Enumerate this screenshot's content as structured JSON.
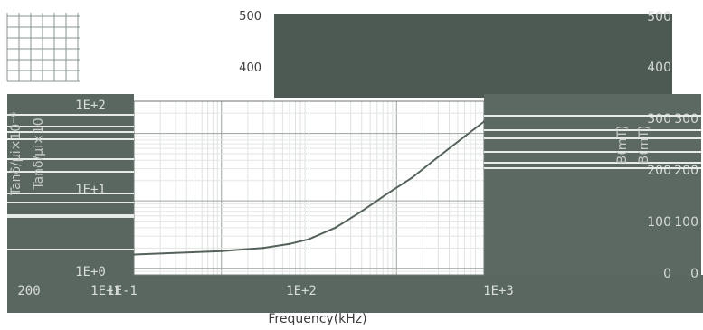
{
  "chart_data": {
    "type": "line",
    "title": "",
    "xlabel": "Frequency(kHz)",
    "ylabel_left": "Tanδ/μi×10",
    "ylabel_left_alt": "Tanδ/μi×10⁻⁶",
    "ylabel_right": "B(mT)",
    "ylabel_right_alt": "B(mT)",
    "x_scale": "log",
    "xlim": [
      0.1,
      1000
    ],
    "x_ticks": [
      "1E-1",
      "1E+1",
      "1E+2",
      "1E+3"
    ],
    "y_left_scale": "log",
    "y_left_ticks": [
      "1E+0",
      "1E+1",
      "1E+2"
    ],
    "y_left_extra_labels": [
      "200"
    ],
    "y_right_ticks": [
      "0",
      "100",
      "200",
      "300",
      "400",
      "500"
    ],
    "y_right_inner_ticks": [
      "0",
      "100",
      "200",
      "300"
    ],
    "top_axis_ticks": [
      "400",
      "500"
    ],
    "grid": true,
    "series": [
      {
        "x": [
          0.1,
          1,
          3,
          6,
          10,
          20,
          40,
          80,
          150,
          300,
          600,
          1000
        ],
        "y": [
          1.6,
          1.8,
          2.0,
          2.3,
          2.7,
          4.0,
          7.0,
          13.0,
          22.0,
          45.0,
          90.0,
          150.0
        ]
      }
    ],
    "colors": {
      "curve": "#55625a",
      "panel_dark": "#4f5c55",
      "panel_mid": "#5f6b64",
      "gridline": "#8a948e"
    }
  }
}
